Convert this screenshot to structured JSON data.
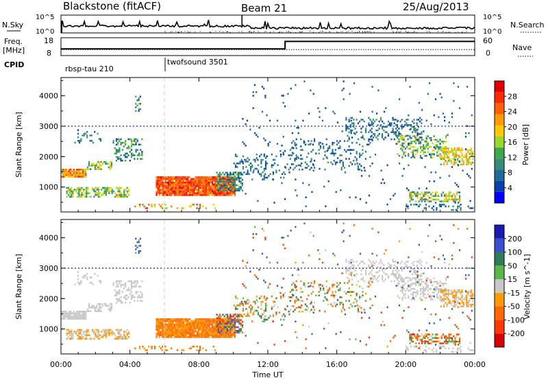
{
  "chart_data": {
    "type": "heatmap",
    "header": {
      "station": "Blackstone (fitACF)",
      "beam": "Beam 21",
      "date": "25/Aug/2013"
    },
    "x_axis": {
      "label": "Time UT",
      "ticks": [
        "00:00",
        "04:00",
        "08:00",
        "12:00",
        "16:00",
        "20:00",
        "00:00"
      ],
      "range_hours": [
        0,
        24
      ]
    },
    "top_panels": {
      "nsky": {
        "label": "N.Sky",
        "ticks": [
          "10^5",
          "10^0"
        ],
        "right_label": "N.Search",
        "right_ticks": [
          "10^5",
          "10^0"
        ]
      },
      "freq": {
        "label_line1": "Freq.",
        "label_line2": "[MHz]",
        "ticks": [
          "18",
          "8"
        ],
        "right_label": "Nave",
        "right_ticks": [
          "60",
          "0"
        ],
        "step_hour": 13,
        "before_mhz": 10.5,
        "after_mhz": 15.5
      },
      "cpid": {
        "label": "CPID",
        "programs": [
          {
            "name": "rbsp-tau 210",
            "start_hour": 0
          },
          {
            "name": "twofsound 3501",
            "start_hour": 6
          }
        ]
      }
    },
    "power_panel": {
      "ylabel": "Slant Range [km]",
      "yticks": [
        1000,
        2000,
        3000,
        4000
      ],
      "ylim_km": [
        180,
        4600
      ],
      "colorbar": {
        "label": "Power [dB]",
        "ticks": [
          "4",
          "8",
          "12",
          "16",
          "20",
          "24",
          "28"
        ],
        "range": [
          0,
          32
        ],
        "colors": [
          "#0000ff",
          "#0a3fb0",
          "#206a9a",
          "#3a8a7a",
          "#3ca84a",
          "#9ad82e",
          "#ffc800",
          "#ff9a00",
          "#ff6000",
          "#ff2a00",
          "#e00000"
        ]
      }
    },
    "velocity_panel": {
      "ylabel": "Slant Range [km]",
      "yticks": [
        1000,
        2000,
        3000,
        4000
      ],
      "ylim_km": [
        180,
        4600
      ],
      "colorbar": {
        "label": "Velocity [m s^-1]",
        "ticks": [
          "200",
          "100",
          "50",
          "15",
          "-15",
          "-50",
          "-100",
          "-200"
        ],
        "colors": [
          "#1a1ab0",
          "#3a4fd0",
          "#2e7a5a",
          "#5ab84a",
          "#c8c8c8",
          "#ff9a00",
          "#ff6a00",
          "#ff3a00",
          "#d80000"
        ]
      }
    },
    "scatter_regions": [
      {
        "t0": 0.0,
        "t1": 1.5,
        "r0": 1300,
        "r1": 1600,
        "pow": [
          16,
          28
        ],
        "vel": [
          -15,
          15
        ],
        "density": 0.9
      },
      {
        "t0": 1.5,
        "t1": 3.0,
        "r0": 1500,
        "r1": 1850,
        "pow": [
          8,
          20
        ],
        "vel": [
          -15,
          15
        ],
        "density": 0.6
      },
      {
        "t0": 3.0,
        "t1": 4.8,
        "r0": 1800,
        "r1": 2600,
        "pow": [
          4,
          16
        ],
        "vel": [
          -15,
          15
        ],
        "density": 0.35
      },
      {
        "t0": 0.3,
        "t1": 4.0,
        "r0": 600,
        "r1": 1000,
        "pow": [
          8,
          20
        ],
        "vel": [
          -50,
          15
        ],
        "density": 0.55
      },
      {
        "t0": 0.6,
        "t1": 2.4,
        "r0": 2400,
        "r1": 2900,
        "pow": [
          4,
          12
        ],
        "vel": [
          -15,
          15
        ],
        "density": 0.2
      },
      {
        "t0": 4.3,
        "t1": 4.7,
        "r0": 3400,
        "r1": 4000,
        "pow": [
          4,
          16
        ],
        "vel": [
          15,
          200
        ],
        "density": 0.3
      },
      {
        "t0": 5.5,
        "t1": 10.2,
        "r0": 700,
        "r1": 1350,
        "pow": [
          22,
          30
        ],
        "vel": [
          -100,
          -15
        ],
        "density": 0.95
      },
      {
        "t0": 9.0,
        "t1": 10.6,
        "r0": 800,
        "r1": 1500,
        "pow": [
          4,
          16
        ],
        "vel": [
          -200,
          200
        ],
        "density": 0.6
      },
      {
        "t0": 4.0,
        "t1": 9.0,
        "r0": 250,
        "r1": 450,
        "pow": [
          12,
          28
        ],
        "vel": [
          -100,
          -15
        ],
        "density": 0.2
      },
      {
        "t0": 10.0,
        "t1": 13.0,
        "r0": 1200,
        "r1": 2100,
        "pow": [
          4,
          12
        ],
        "vel": [
          -100,
          100
        ],
        "density": 0.2
      },
      {
        "t0": 13.0,
        "t1": 18.0,
        "r0": 1500,
        "r1": 2600,
        "pow": [
          4,
          12
        ],
        "vel": [
          -100,
          100
        ],
        "density": 0.15
      },
      {
        "t0": 16.5,
        "t1": 21.0,
        "r0": 2500,
        "r1": 3300,
        "pow": [
          4,
          12
        ],
        "vel": [
          -15,
          15
        ],
        "density": 0.3
      },
      {
        "t0": 19.5,
        "t1": 22.5,
        "r0": 1900,
        "r1": 2700,
        "pow": [
          8,
          20
        ],
        "vel": [
          -15,
          15
        ],
        "density": 0.35
      },
      {
        "t0": 22.0,
        "t1": 24.0,
        "r0": 1700,
        "r1": 2300,
        "pow": [
          14,
          24
        ],
        "vel": [
          -50,
          15
        ],
        "density": 0.6
      },
      {
        "t0": 20.2,
        "t1": 23.2,
        "r0": 450,
        "r1": 850,
        "pow": [
          8,
          22
        ],
        "vel": [
          -200,
          100
        ],
        "density": 0.5
      },
      {
        "t0": 20.0,
        "t1": 24.0,
        "r0": 200,
        "r1": 450,
        "pow": [
          4,
          12
        ],
        "vel": [
          -15,
          15
        ],
        "density": 0.2
      },
      {
        "t0": 10.5,
        "t1": 24.0,
        "r0": 300,
        "r1": 4500,
        "pow": [
          4,
          8
        ],
        "vel": [
          -200,
          200
        ],
        "density": 0.02
      }
    ],
    "range_lines_km": [
      3000
    ]
  }
}
